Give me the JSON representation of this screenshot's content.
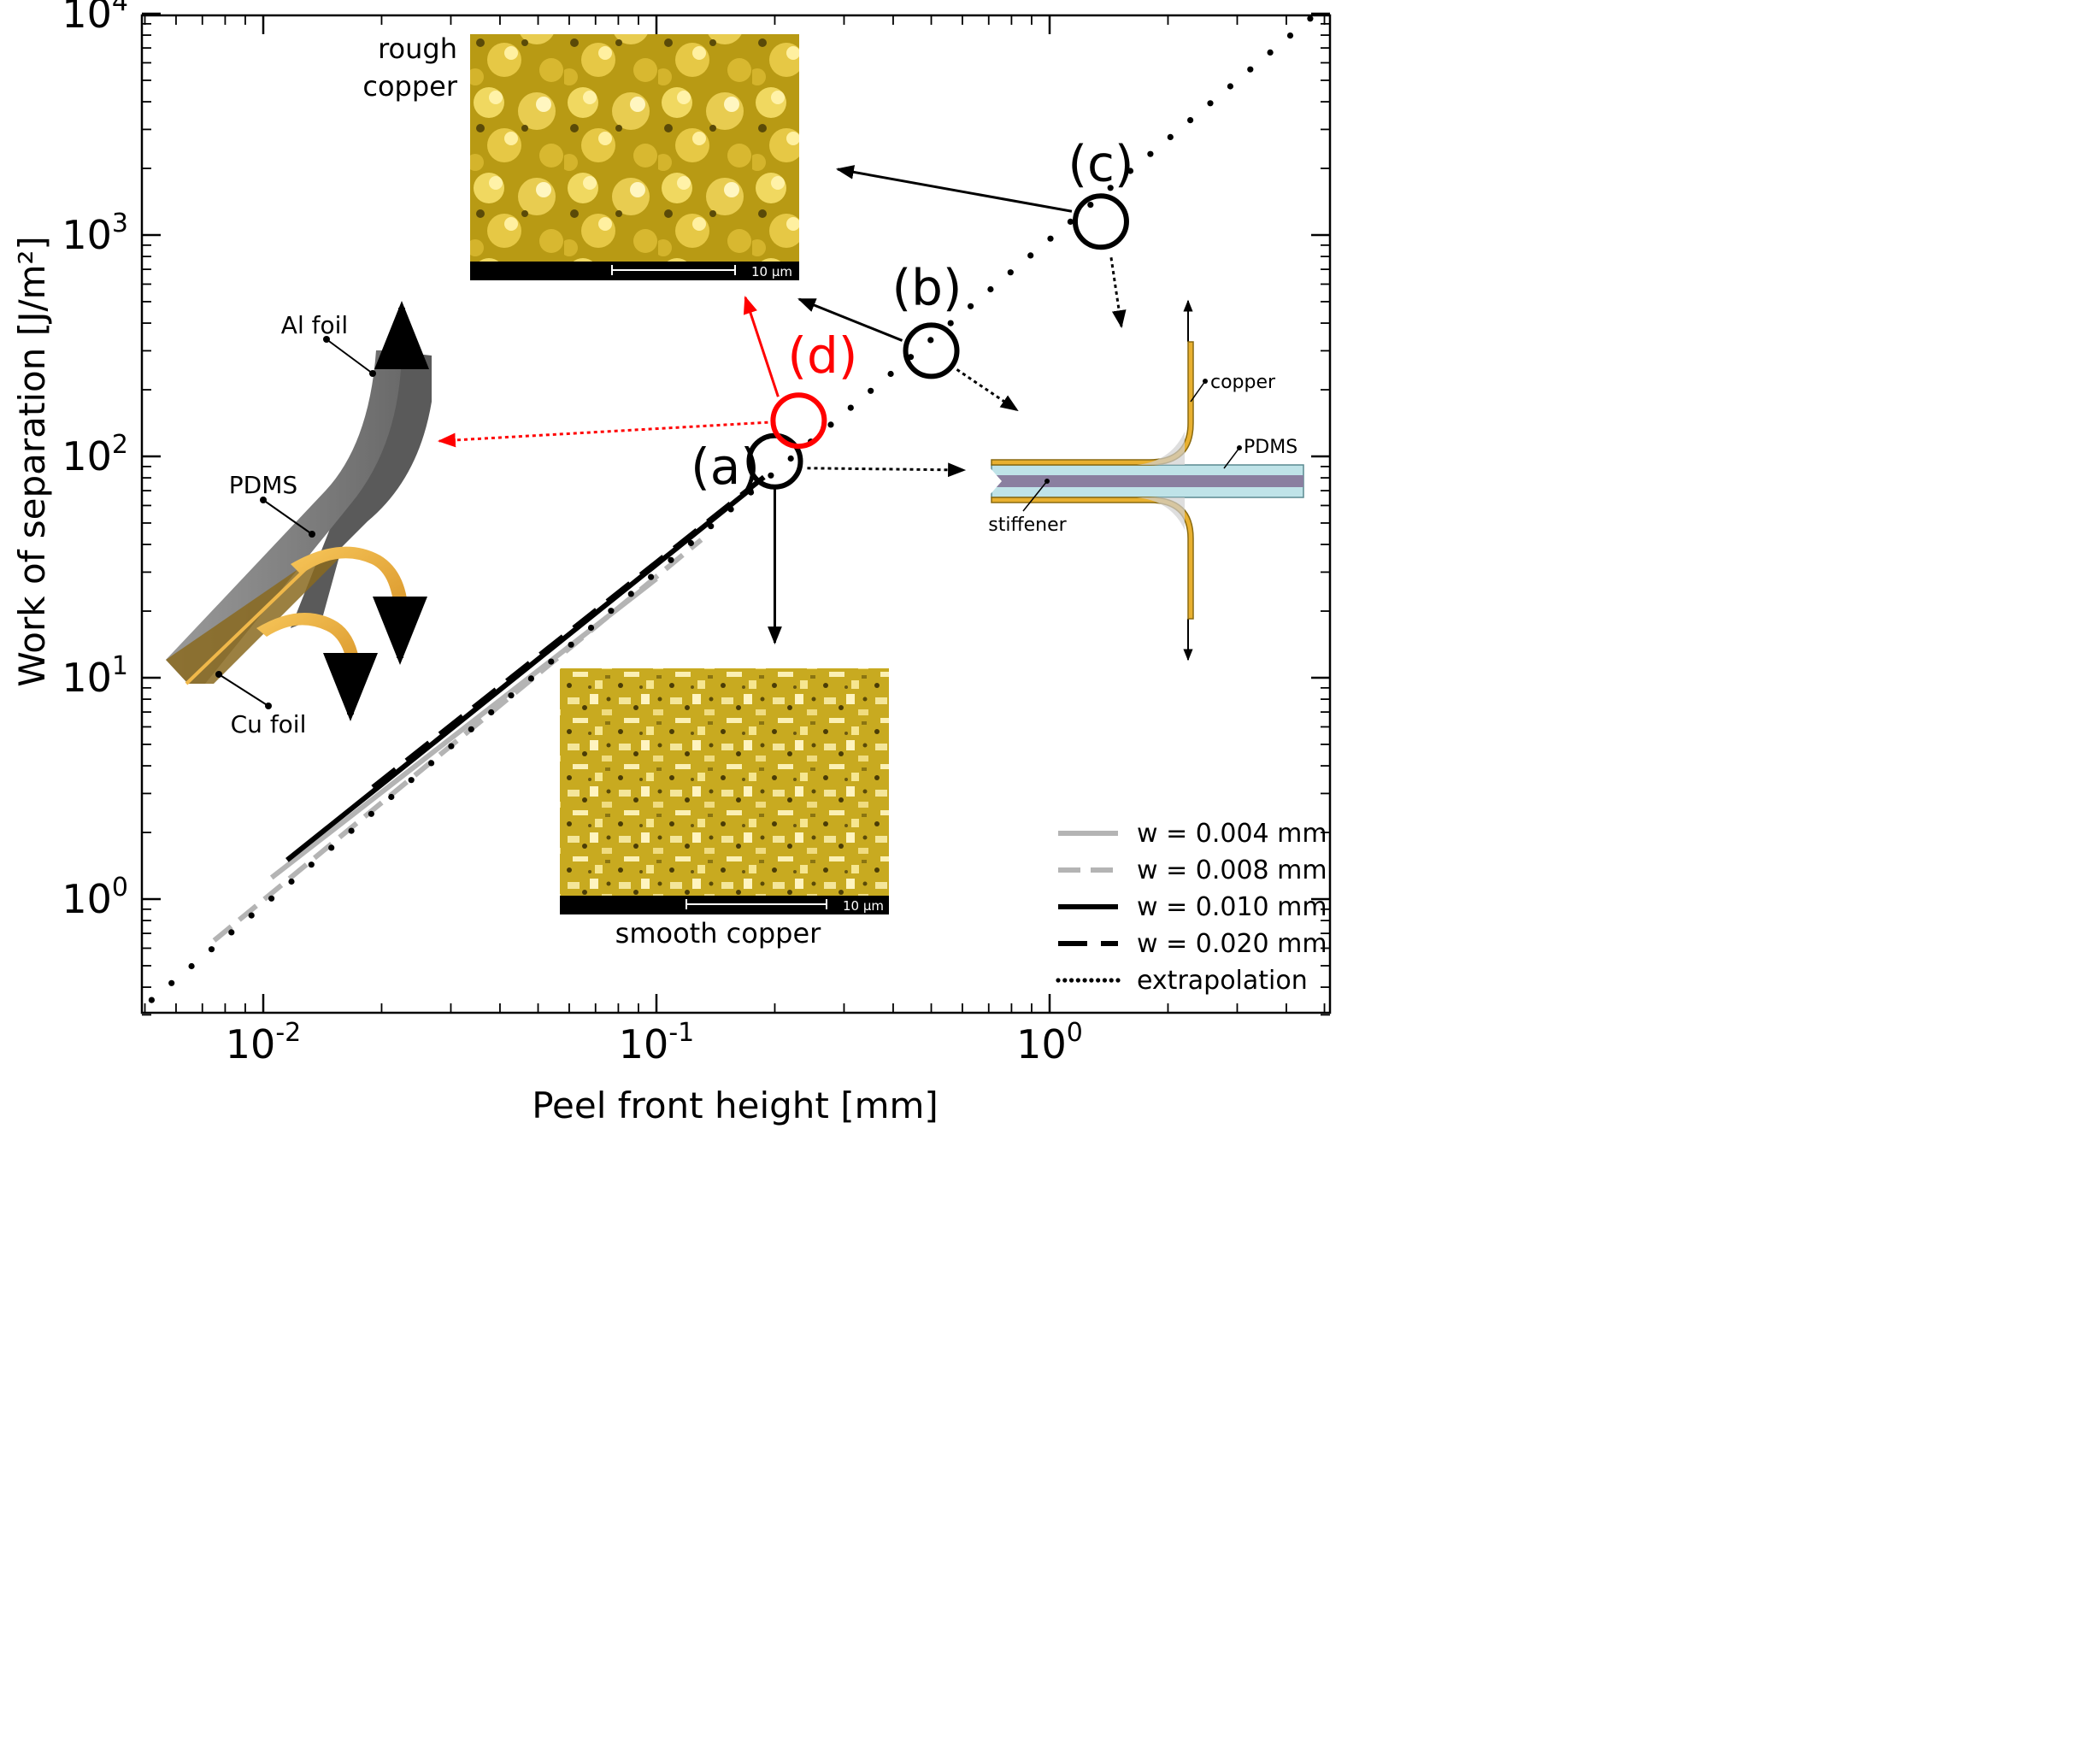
{
  "chart_data": {
    "type": "line",
    "xlabel": "Peel front height [mm]",
    "ylabel": "Work of separation [J/m²]",
    "xscale": "log",
    "yscale": "log",
    "xlim": [
      0.005,
      5.5
    ],
    "ylim": [
      0.3,
      10000
    ],
    "grid": false,
    "legend_position": "bottom-right",
    "x_ticks": [
      {
        "value": 0.01,
        "base": "10",
        "exp": "-2"
      },
      {
        "value": 0.1,
        "base": "10",
        "exp": "-1"
      },
      {
        "value": 1,
        "base": "10",
        "exp": "0"
      }
    ],
    "y_ticks": [
      {
        "value": 1,
        "base": "10",
        "exp": "0"
      },
      {
        "value": 10,
        "base": "10",
        "exp": "1"
      },
      {
        "value": 100,
        "base": "10",
        "exp": "2"
      },
      {
        "value": 1000,
        "base": "10",
        "exp": "3"
      },
      {
        "value": 10000,
        "base": "10",
        "exp": "4"
      }
    ],
    "series": [
      {
        "name": "w = 0.004 mm",
        "color": "#b4b4b4",
        "style": "solid",
        "x": [
          0.0105,
          0.1
        ],
        "y": [
          1.25,
          28
        ]
      },
      {
        "name": "w = 0.008 mm",
        "color": "#b4b4b4",
        "style": "dashed",
        "x": [
          0.0075,
          0.13
        ],
        "y": [
          0.65,
          42
        ]
      },
      {
        "name": "w = 0.010 mm",
        "color": "#000000",
        "style": "solid",
        "x": [
          0.0115,
          0.175
        ],
        "y": [
          1.5,
          72
        ]
      },
      {
        "name": "w = 0.020 mm",
        "color": "#000000",
        "style": "dashed",
        "x": [
          0.019,
          0.19
        ],
        "y": [
          3.2,
          82
        ]
      },
      {
        "name": "extrapolation",
        "color": "#000000",
        "style": "dotted",
        "x": [
          0.0052,
          4.6
        ],
        "y": [
          0.35,
          9500
        ]
      }
    ],
    "annotations": {
      "markers": [
        {
          "label": "(a)",
          "color": "#000000",
          "x": 0.2,
          "y": 95
        },
        {
          "label": "(b)",
          "color": "#000000",
          "x": 0.5,
          "y": 300
        },
        {
          "label": "(c)",
          "color": "#000000",
          "x": 1.35,
          "y": 1150
        },
        {
          "label": "(d)",
          "color": "#ff0000",
          "x": 0.23,
          "y": 145
        }
      ],
      "insets": {
        "rough": {
          "label_line1": "rough",
          "label_line2": "copper",
          "scale": "10 µm"
        },
        "smooth": {
          "label": "smooth copper",
          "scale": "10 µm"
        },
        "peel_sketch": {
          "al_foil": "Al foil",
          "pdms": "PDMS",
          "cu_foil": "Cu foil"
        },
        "cross_section": {
          "copper": "copper",
          "pdms": "PDMS",
          "stiffener": "stiffener"
        }
      },
      "colors": {
        "gold": "#d4b830",
        "foil": "#f0b84a",
        "pdms": "#bfe0e6",
        "stiffener": "#8a7fa0",
        "gray_foil": "#8a8a8a"
      }
    }
  }
}
